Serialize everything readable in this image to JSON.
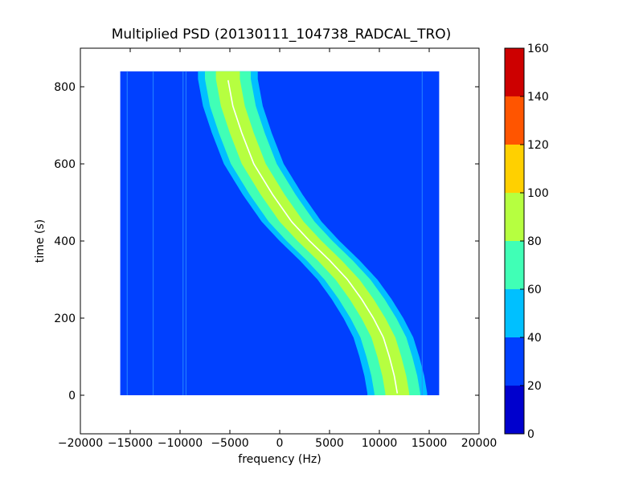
{
  "chart_data": {
    "type": "heatmap",
    "title": "Multiplied PSD (20130111_104738_RADCAL_TRO)",
    "xlabel": "frequency (Hz)",
    "ylabel": "time (s)",
    "xlim": [
      -20000,
      20000
    ],
    "ylim": [
      -100,
      900
    ],
    "x_ticks": [
      -20000,
      -15000,
      -10000,
      -5000,
      0,
      5000,
      10000,
      15000,
      20000
    ],
    "y_ticks": [
      0,
      200,
      400,
      600,
      800
    ],
    "data_extent": {
      "x": [
        -16000,
        16000
      ],
      "y": [
        0,
        840
      ]
    },
    "grid": false,
    "colormap": "jet",
    "colorbar": {
      "range": [
        0,
        160
      ],
      "ticks": [
        0,
        20,
        40,
        60,
        80,
        100,
        120,
        140,
        160
      ],
      "levels": [
        {
          "from": 0,
          "to": 20,
          "color": "#0000cd"
        },
        {
          "from": 20,
          "to": 40,
          "color": "#0040ff"
        },
        {
          "from": 40,
          "to": 60,
          "color": "#00c0ff"
        },
        {
          "from": 60,
          "to": 80,
          "color": "#40ffb6"
        },
        {
          "from": 80,
          "to": 100,
          "color": "#b6ff40"
        },
        {
          "from": 100,
          "to": 120,
          "color": "#ffd000"
        },
        {
          "from": 120,
          "to": 140,
          "color": "#ff5500"
        },
        {
          "from": 140,
          "to": 160,
          "color": "#cd0000"
        }
      ]
    },
    "background_level": [
      20,
      40
    ],
    "trace": {
      "description": "Doppler-shifted carrier line",
      "points": [
        {
          "time": 820,
          "freq": -5200
        },
        {
          "time": 750,
          "freq": -4700
        },
        {
          "time": 680,
          "freq": -3800
        },
        {
          "time": 600,
          "freq": -2600
        },
        {
          "time": 520,
          "freq": -700
        },
        {
          "time": 450,
          "freq": 1200
        },
        {
          "time": 400,
          "freq": 3000
        },
        {
          "time": 350,
          "freq": 5000
        },
        {
          "time": 300,
          "freq": 6800
        },
        {
          "time": 250,
          "freq": 8200
        },
        {
          "time": 200,
          "freq": 9400
        },
        {
          "time": 150,
          "freq": 10400
        },
        {
          "time": 100,
          "freq": 11000
        },
        {
          "time": 50,
          "freq": 11500
        },
        {
          "time": 5,
          "freq": 11800
        }
      ],
      "bands": [
        {
          "level": [
            40,
            60
          ],
          "half_width": 3000
        },
        {
          "level": [
            60,
            80
          ],
          "half_width": 2300
        },
        {
          "level": [
            80,
            100
          ],
          "half_width": 1200
        }
      ]
    },
    "narrowband_lines_hz": [
      -15300,
      -12700,
      -9700,
      -9400,
      14300
    ]
  }
}
